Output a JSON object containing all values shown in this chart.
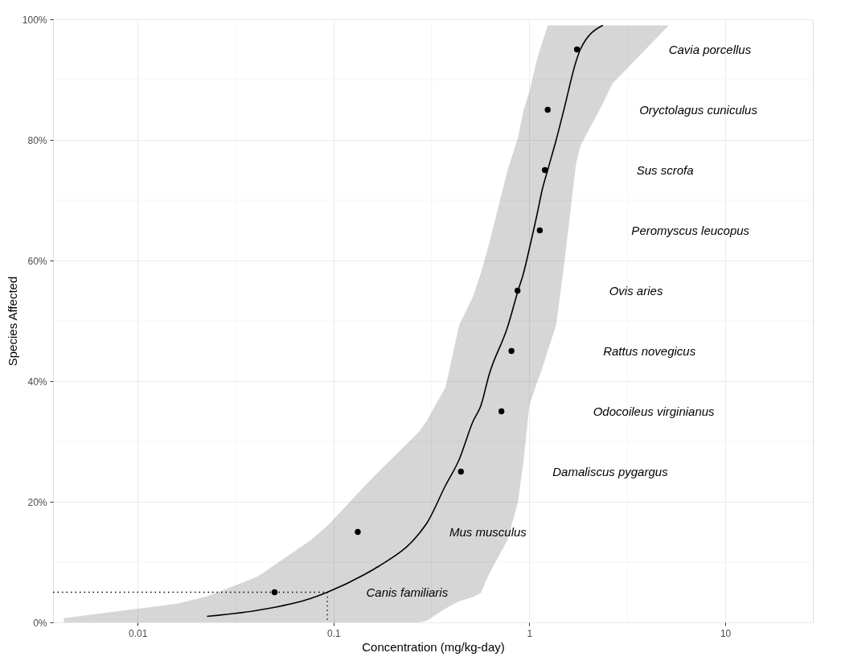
{
  "chart_data": {
    "type": "scatter",
    "xlabel": "Concentration (mg/kg-day)",
    "ylabel": "Species Affected",
    "log": "x",
    "grid": true,
    "marker": "circle",
    "xlim": [
      0.0037,
      28
    ],
    "xticks": [
      0.01,
      0.1,
      1,
      10
    ],
    "ylim": [
      0,
      100
    ],
    "yticks": [
      {
        "value": 0,
        "label": "0%"
      },
      {
        "value": 20,
        "label": "20%"
      },
      {
        "value": 40,
        "label": "40%"
      },
      {
        "value": 60,
        "label": "60%"
      },
      {
        "value": 80,
        "label": "80%"
      },
      {
        "value": 100,
        "label": "100%"
      }
    ],
    "series": [
      {
        "type": "line",
        "color": "#000000",
        "line_style": "solid",
        "marker": "none",
        "x": [
          0.0042,
          0.0159,
          0.0226,
          0.041,
          0.077,
          0.093,
          0.145,
          0.17,
          0.273,
          0.3,
          0.373,
          0.438,
          0.515,
          0.566,
          0.622,
          0.774,
          0.875,
          0.935,
          1.0,
          1.1,
          1.16,
          1.24,
          1.37,
          1.5,
          1.73,
          1.82,
          2.37,
          2.65,
          5.15
        ],
        "values": [
          null,
          null,
          1,
          2,
          4,
          5,
          8,
          9.3,
          14.7,
          16.5,
          22.7,
          27,
          33.3,
          36,
          41,
          49,
          55,
          58,
          62,
          68,
          71.6,
          75,
          80,
          85,
          93,
          95,
          99,
          null,
          null
        ],
        "lower": [
          0,
          0,
          0,
          0,
          0,
          0,
          0,
          0,
          0,
          0.3,
          2.3,
          3.5,
          4.2,
          4.9,
          8,
          13.7,
          20,
          27,
          36,
          40,
          42,
          45,
          49.3,
          59,
          76,
          79,
          86,
          89.3,
          99
        ],
        "upper": [
          0.7,
          3.1,
          4.3,
          7.6,
          13.7,
          16,
          22.7,
          25,
          31.6,
          33.5,
          39,
          49.3,
          54,
          58,
          62.7,
          75,
          80.4,
          85,
          88,
          93.7,
          96,
          99,
          99,
          99,
          99,
          99,
          99,
          99,
          99
        ]
      },
      {
        "type": "line",
        "color": "#000000",
        "line_style": "dotted",
        "marker": "none",
        "x": [
          0.0037,
          0.093,
          0.093
        ],
        "values": [
          5,
          5,
          0
        ]
      },
      {
        "color": "#000000",
        "x": [
          0.05,
          0.133,
          0.447,
          0.72,
          0.81,
          0.87,
          1.13,
          1.2,
          1.24,
          1.75
        ],
        "values": [
          5,
          15,
          25,
          35,
          45,
          55,
          65,
          75,
          85,
          95
        ]
      }
    ],
    "annotations": [
      "Canis familiaris",
      "Mus musculus",
      "Damaliscus pygargus",
      "Odocoileus virginianus",
      "Rattus novegicus",
      "Ovis aries",
      "Peromyscus leucopus",
      "Sus scrofa",
      "Oryctolagus cuniculus",
      "Cavia porcellus"
    ]
  }
}
